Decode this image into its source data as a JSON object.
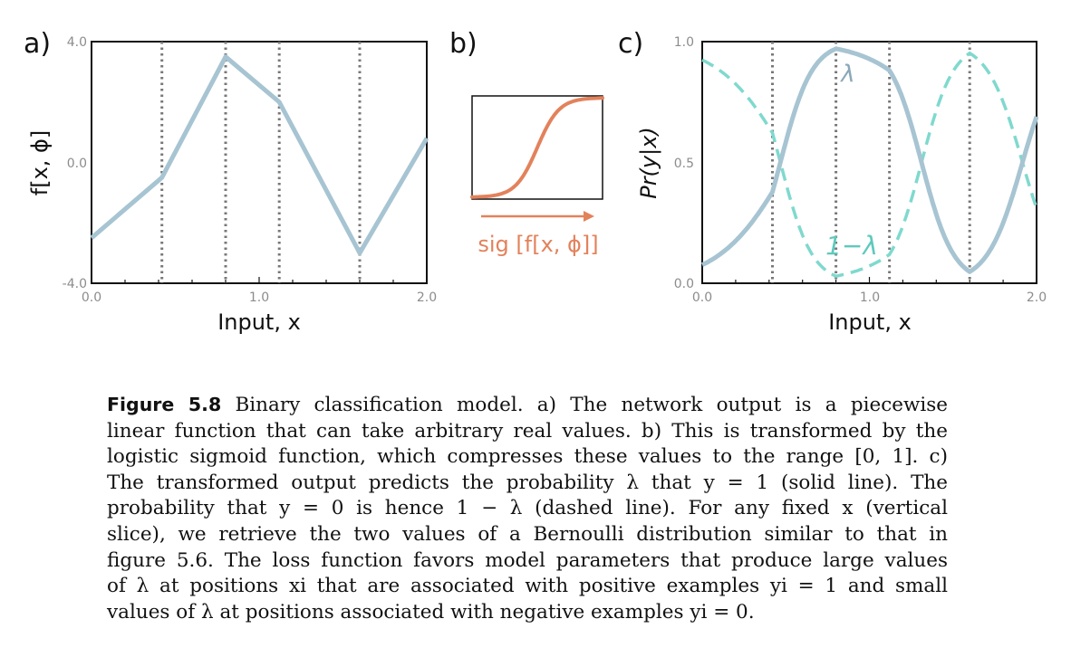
{
  "panels": {
    "a": {
      "letter": "a)",
      "ylabel": "f[x, ϕ]",
      "xlabel": "Input, x",
      "yticks": [
        "4.0",
        "0.0",
        "-4.0"
      ],
      "xticks": [
        "0.0",
        "1.0",
        "2.0"
      ]
    },
    "b": {
      "letter": "b)",
      "label": "sig [f[x, ϕ]]"
    },
    "c": {
      "letter": "c)",
      "ylabel": "Pr(y|x)",
      "xlabel": "Input, x",
      "yticks": [
        "1.0",
        "0.5",
        "0.0"
      ],
      "xticks": [
        "0.0",
        "1.0",
        "2.0"
      ],
      "lambda_label": "λ",
      "one_minus_lambda_label": "1−λ"
    }
  },
  "colors": {
    "solid_line": "#a7c4d2",
    "dashed_line": "#7fd9ce",
    "sigmoid": "#e2825c",
    "vlines": "#777777"
  },
  "chart_data": [
    {
      "type": "line",
      "panel": "a",
      "x": [
        0.0,
        0.42,
        0.8,
        1.12,
        1.6,
        2.0
      ],
      "series": [
        {
          "values": [
            -2.5,
            -0.5,
            3.5,
            2.0,
            -3.0,
            0.8
          ]
        }
      ],
      "vlines": [
        0.42,
        0.8,
        1.12,
        1.6
      ],
      "xlim": [
        0.0,
        2.0
      ],
      "ylim": [
        -4.0,
        4.0
      ],
      "xlabel": "Input, x",
      "ylabel": "f[x, ϕ]"
    },
    {
      "type": "line",
      "panel": "c",
      "x": [
        0.0,
        0.42,
        0.8,
        1.12,
        1.6,
        2.0
      ],
      "series": [
        {
          "style": "solid",
          "values": [
            0.076,
            0.378,
            0.971,
            0.881,
            0.047,
            0.69
          ]
        },
        {
          "style": "dashed",
          "values": [
            0.924,
            0.622,
            0.029,
            0.119,
            0.953,
            0.31
          ]
        }
      ],
      "vlines": [
        0.42,
        0.8,
        1.12,
        1.6
      ],
      "xlim": [
        0.0,
        2.0
      ],
      "ylim": [
        0.0,
        1.0
      ],
      "xlabel": "Input, x",
      "ylabel": "Pr(y|x)"
    }
  ],
  "caption": {
    "label": "Figure 5.8",
    "lines": [
      " Binary classification model. a) The network output is a piecewise",
      "linear function that can take arbitrary real values. b) This is transformed by the",
      "logistic sigmoid function, which compresses these values to the range [0, 1]. c)",
      "The transformed output predicts the probability λ that y = 1 (solid line). The",
      "probability that y = 0 is hence 1 − λ (dashed line). For any fixed x (vertical",
      "slice), we retrieve the two values of a Bernoulli distribution similar to that in",
      "figure 5.6. The loss function favors model parameters that produce large values",
      "of λ at positions xi that are associated with positive examples yi = 1 and small",
      "values of λ at positions associated with negative examples yi = 0."
    ]
  }
}
